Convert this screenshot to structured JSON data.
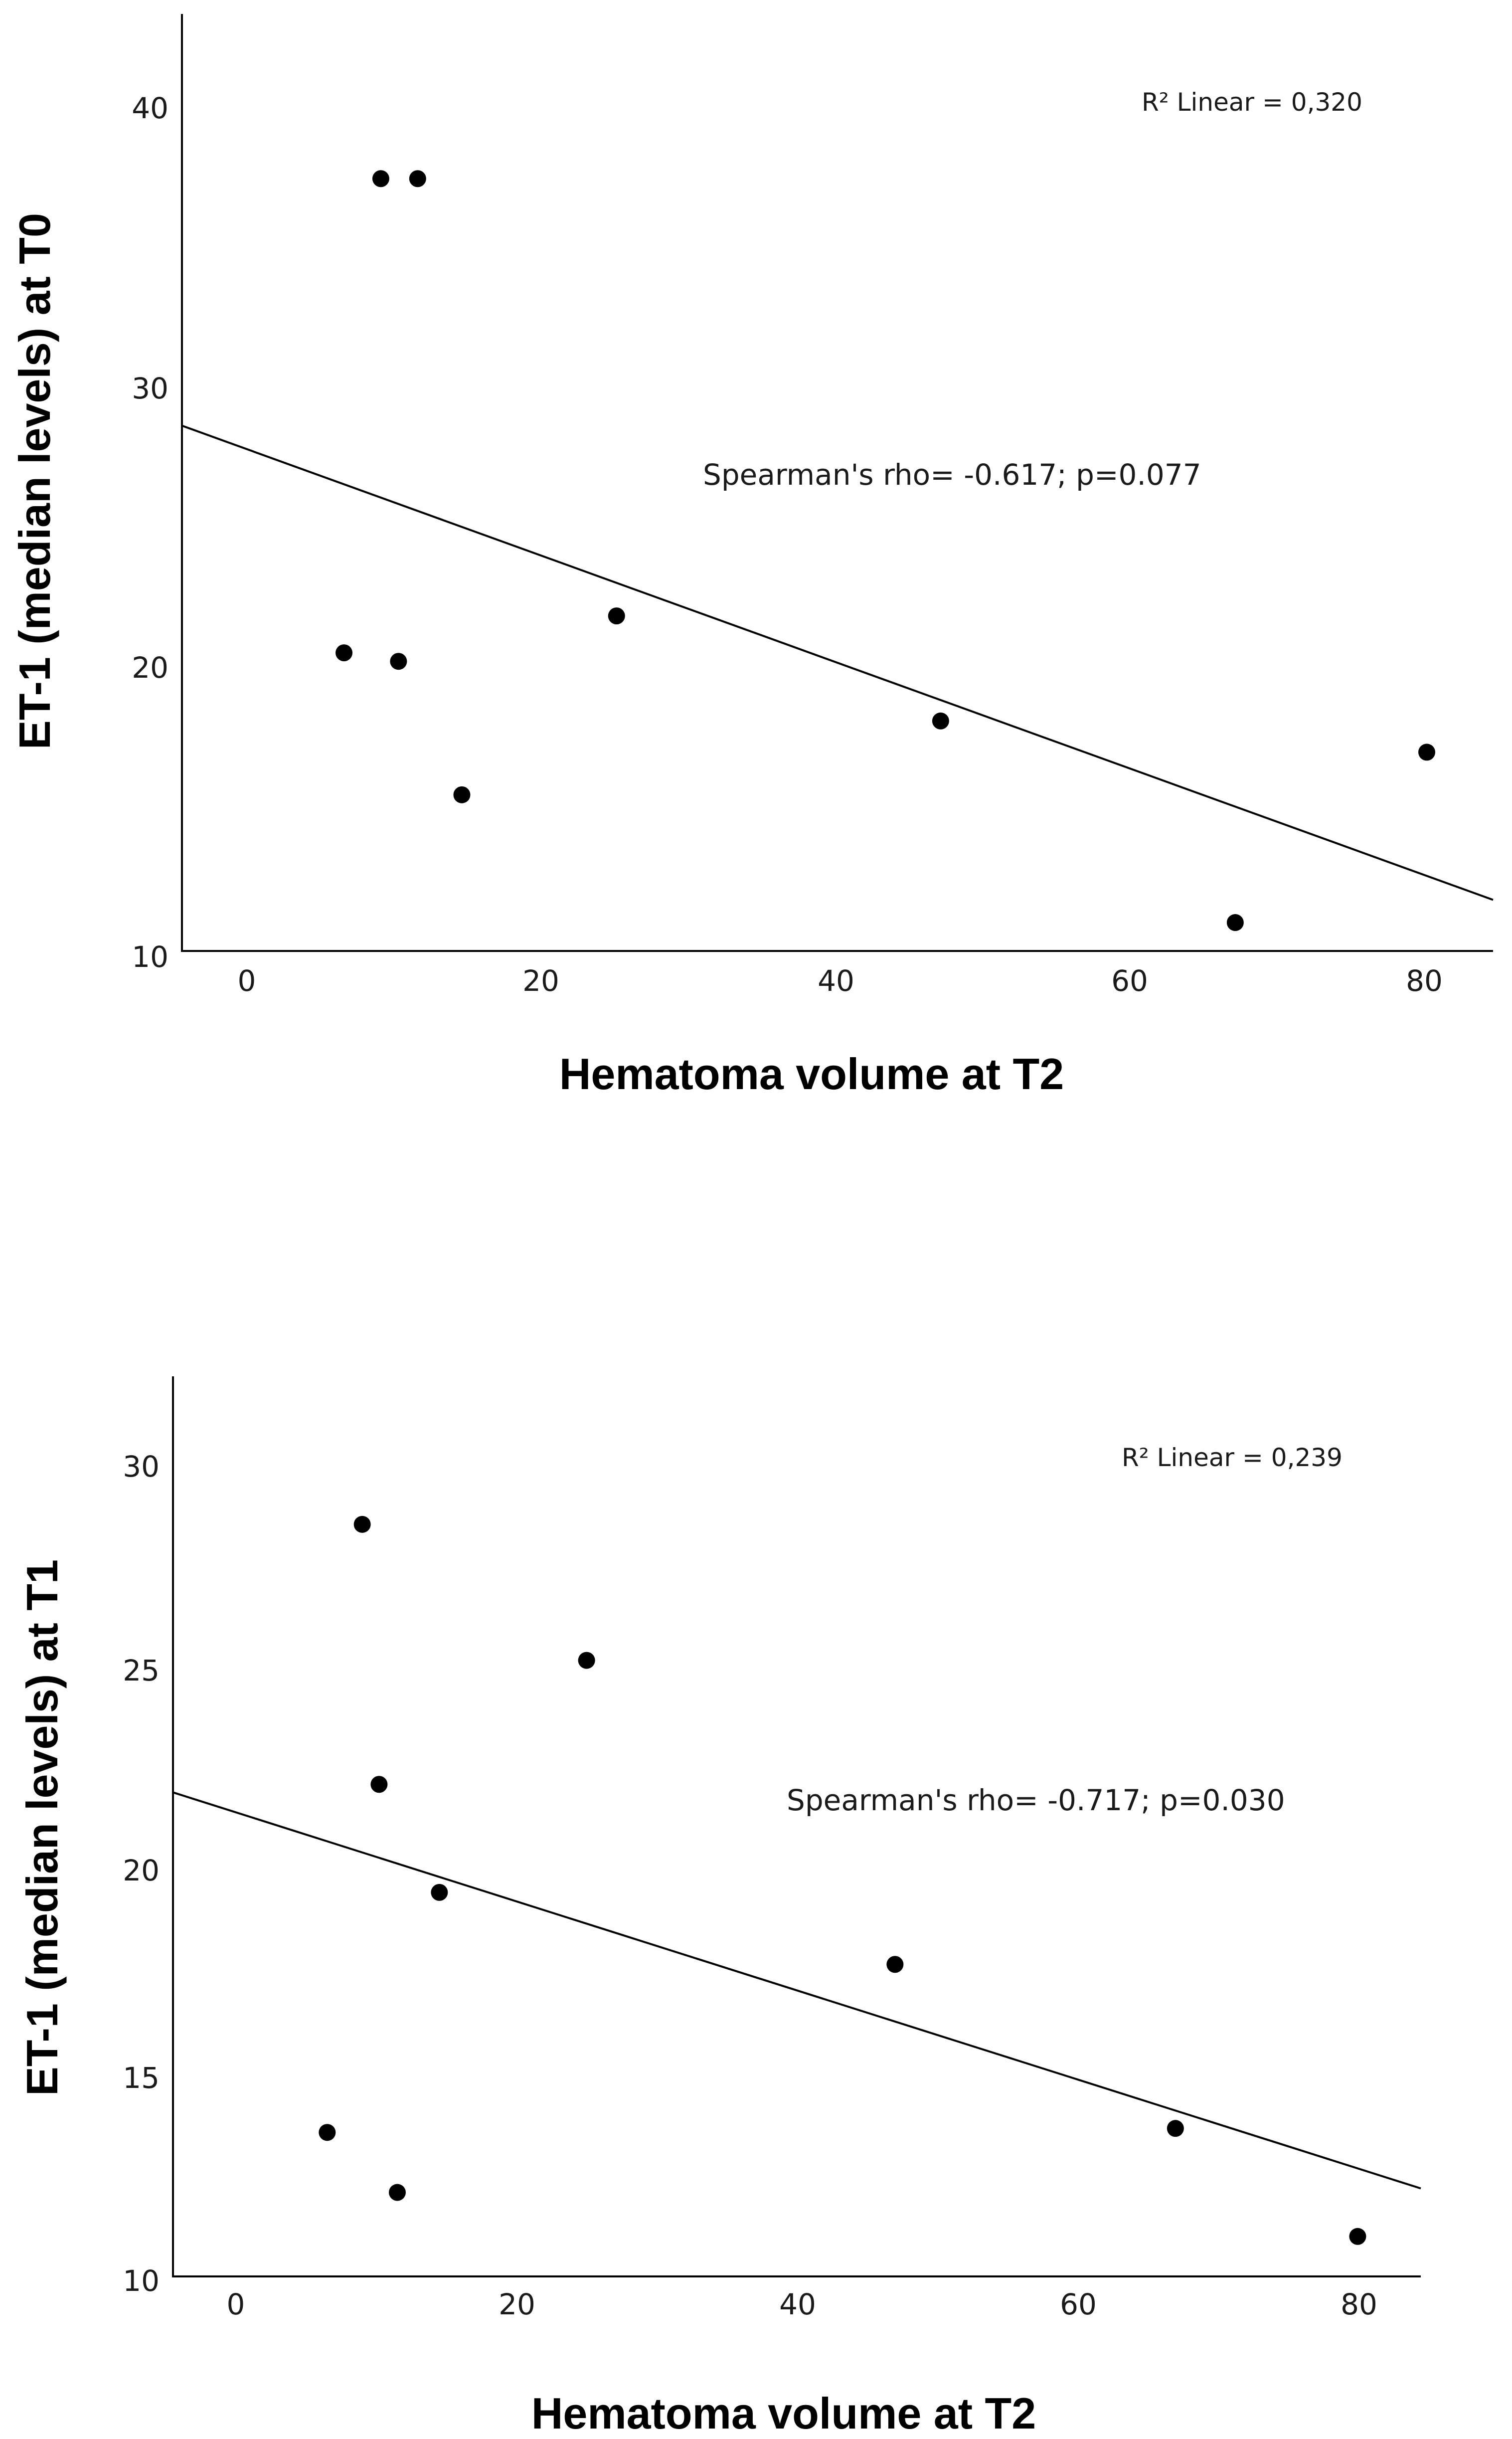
{
  "chart_data": [
    {
      "type": "scatter",
      "title": "",
      "xlabel": "Hematoma volume at T2",
      "ylabel": "ET-1 (median levels) at T0",
      "xlim": [
        -4.5,
        84.5
      ],
      "ylim": [
        10,
        43
      ],
      "xticks": [
        0,
        20,
        40,
        60,
        80
      ],
      "yticks": [
        10,
        20,
        30,
        40
      ],
      "x": [
        6.5,
        9,
        11.5,
        10.2,
        14.5,
        25,
        47,
        67,
        80
      ],
      "y": [
        20.5,
        37.2,
        37.2,
        20.2,
        15.5,
        21.8,
        18.1,
        11,
        17
      ],
      "fit_line": {
        "x": [
          -4.5,
          84.5
        ],
        "y": [
          28.5,
          11.8
        ]
      },
      "r2_label": "R² Linear = 0,320",
      "annotation": "Spearman's rho= -0.617; p=0.077"
    },
    {
      "type": "scatter",
      "title": "",
      "xlabel": "Hematoma volume at T2",
      "ylabel": "ET-1 (median levels) at T1",
      "xlim": [
        -4.5,
        84.5
      ],
      "ylim": [
        10,
        32.5
      ],
      "xticks": [
        0,
        20,
        40,
        60,
        80
      ],
      "yticks": [
        10,
        15,
        20,
        25,
        30
      ],
      "x": [
        6.5,
        9,
        10.2,
        11.5,
        14.5,
        25,
        47,
        67,
        80
      ],
      "y": [
        13.6,
        28.8,
        22.3,
        12.1,
        19.6,
        25.4,
        17.8,
        13.7,
        11
      ],
      "fit_line": {
        "x": [
          -4.5,
          84.5
        ],
        "y": [
          22.1,
          12.2
        ]
      },
      "r2_label": "R² Linear = 0,239",
      "annotation": "Spearman's rho= -0.717; p=0.030"
    }
  ]
}
